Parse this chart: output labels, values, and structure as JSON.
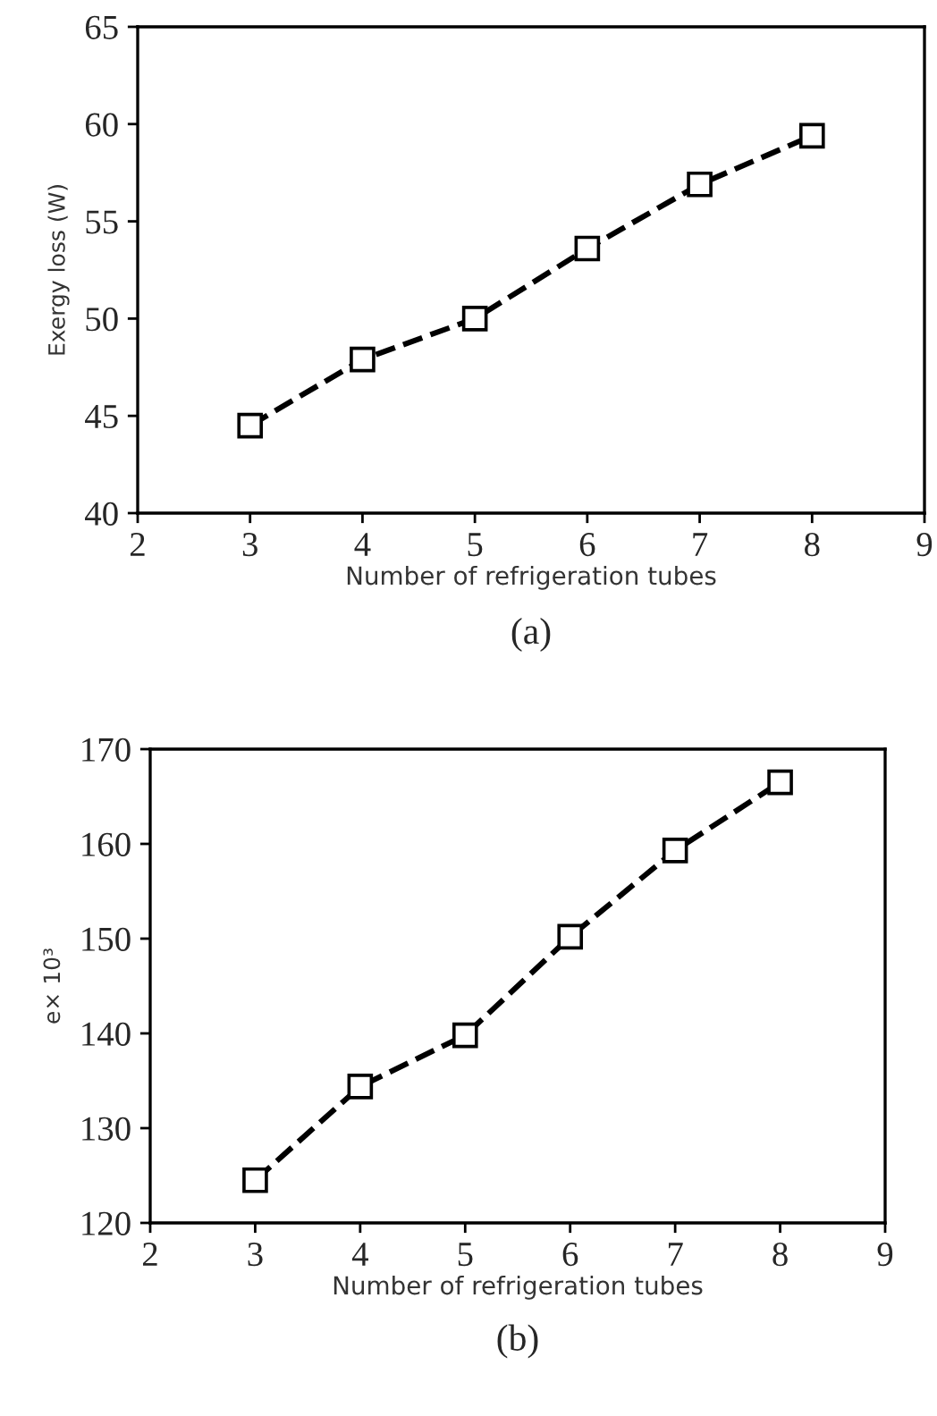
{
  "chart_data": [
    {
      "type": "line",
      "xlabel": "Number of refrigeration tubes",
      "ylabel": "Exergy loss (W)",
      "annotations": [
        "(a)"
      ],
      "x": [
        3,
        4,
        5,
        6,
        7,
        8
      ],
      "series": [
        {
          "color": "#000000",
          "values": [
            44.5,
            47.9,
            50.0,
            53.6,
            56.9,
            59.4
          ]
        }
      ],
      "xlim": [
        2,
        9
      ],
      "xticks": [
        2,
        3,
        4,
        5,
        6,
        7,
        8,
        9
      ],
      "ylim": [
        40,
        65
      ],
      "yticks": [
        40,
        45,
        50,
        55,
        60,
        65
      ],
      "marker": "square",
      "line_style": "dashed",
      "grid": false,
      "legend": false
    },
    {
      "type": "line",
      "xlabel": "Number of refrigeration tubes",
      "ylabel": "e× 10³",
      "annotations": [
        "(b)"
      ],
      "x": [
        3,
        4,
        5,
        6,
        7,
        8
      ],
      "series": [
        {
          "color": "#000000",
          "values": [
            124.5,
            134.4,
            139.8,
            150.2,
            159.3,
            166.5
          ]
        }
      ],
      "xlim": [
        2,
        9
      ],
      "xticks": [
        2,
        3,
        4,
        5,
        6,
        7,
        8,
        9
      ],
      "ylim": [
        120,
        170
      ],
      "yticks": [
        120,
        130,
        140,
        150,
        160,
        170
      ],
      "marker": "square",
      "line_style": "dashed",
      "grid": false,
      "legend": false
    }
  ]
}
